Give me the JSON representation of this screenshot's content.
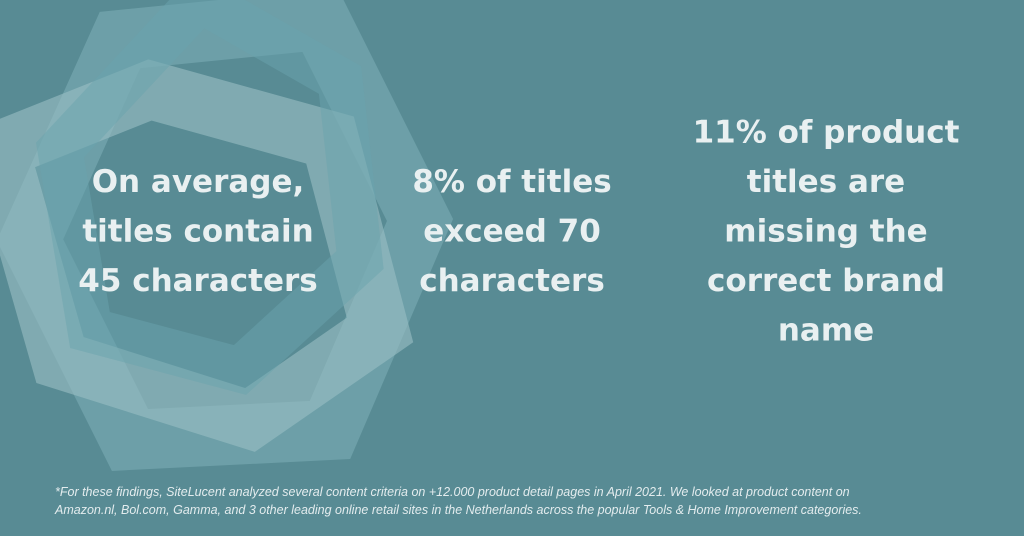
{
  "stats": [
    {
      "lines": [
        "On average,",
        "titles contain",
        "45 characters"
      ]
    },
    {
      "lines": [
        "8% of titles",
        "exceed 70",
        "characters"
      ]
    },
    {
      "lines": [
        "11% of product",
        "titles are",
        "missing the",
        "correct brand",
        "name"
      ]
    }
  ],
  "footnote": {
    "lines": [
      "*For these findings, SiteLucent analyzed several content criteria on +12.000 product detail pages in April 2021. We looked at product content on",
      "Amazon.nl, Bol.com, Gamma, and 3 other leading online retail sites in the Netherlands across the popular Tools & Home Improvement categories."
    ]
  }
}
